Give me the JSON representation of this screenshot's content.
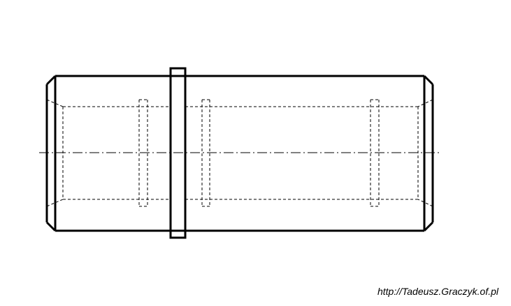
{
  "credit": {
    "text": "http://Tadeusz.Graczyk.of.pl"
  },
  "drawing": {
    "subject": "cylindrical sleeve with central collar, chamfered ends and internal grooves",
    "line_color": "#000000",
    "background": "#ffffff"
  }
}
